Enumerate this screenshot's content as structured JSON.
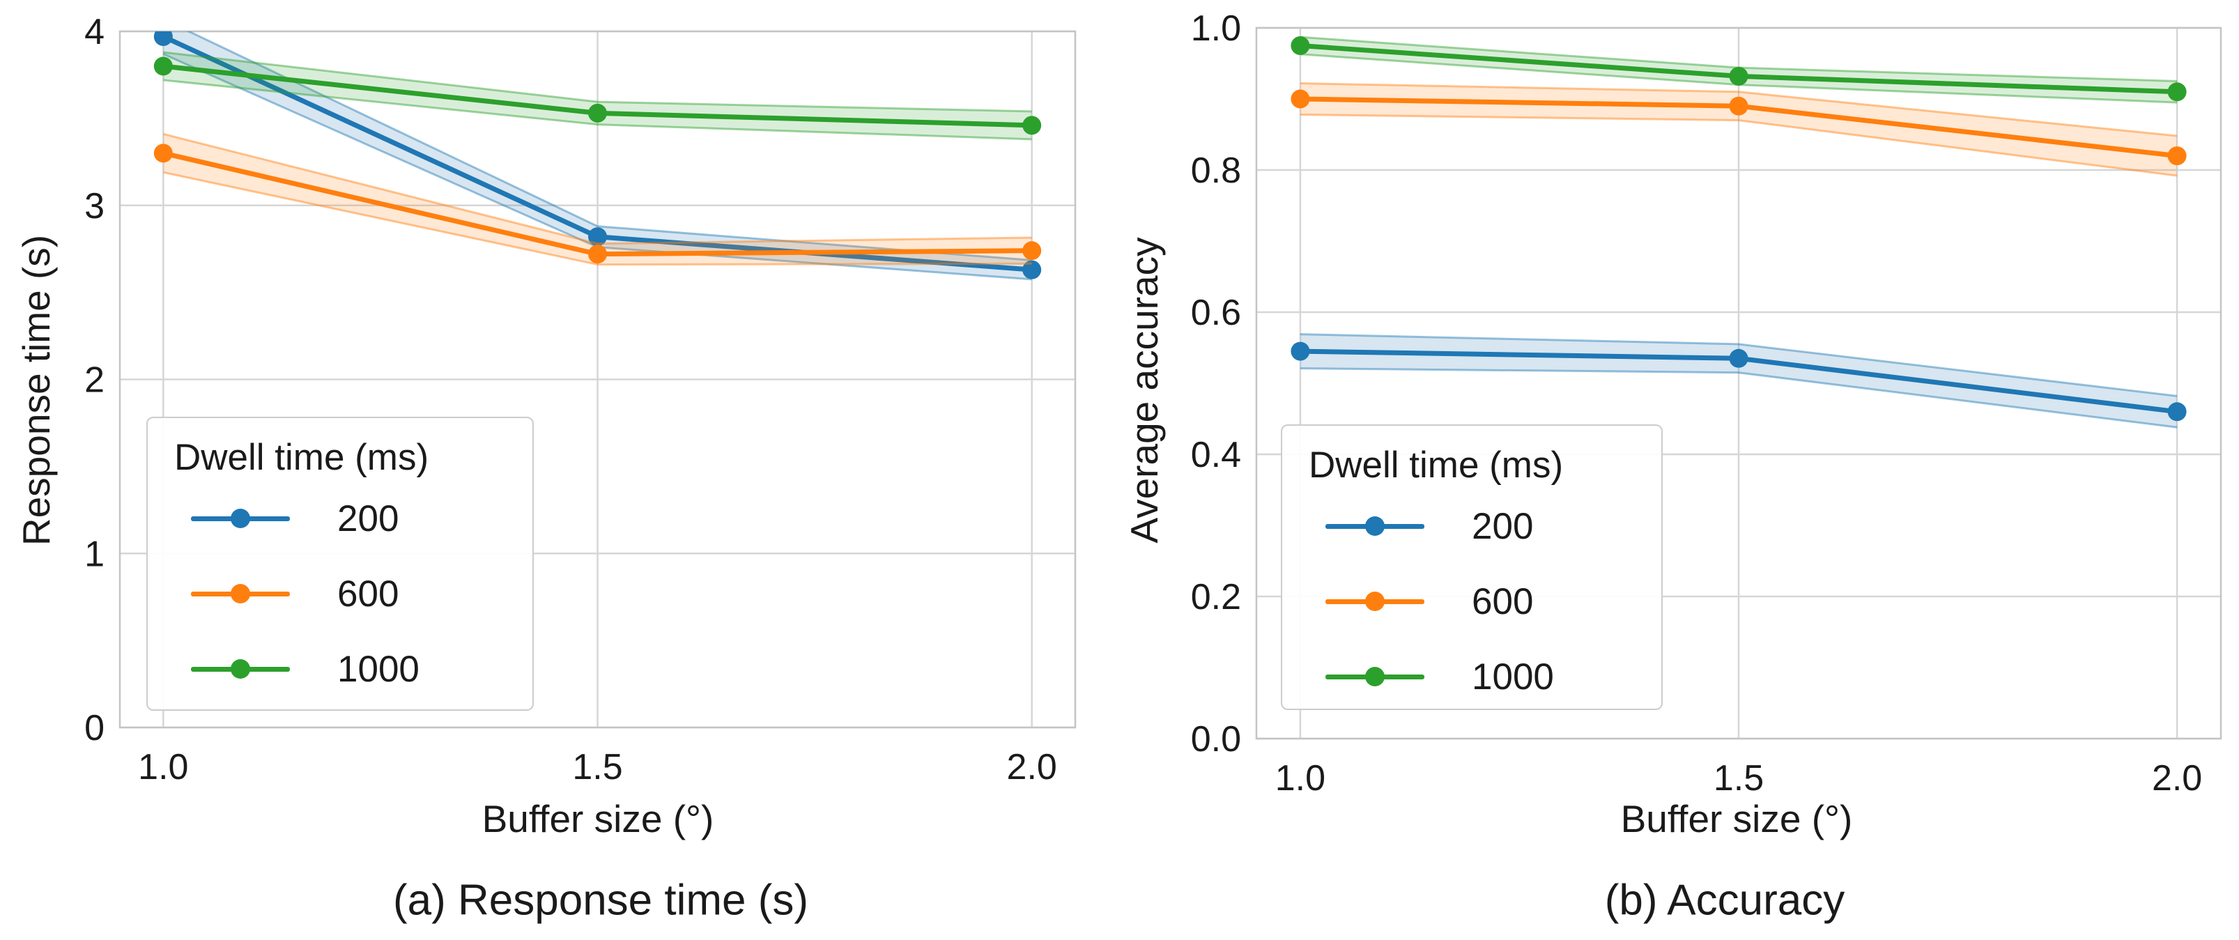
{
  "chart_data": [
    {
      "type": "line",
      "caption": "(a) Response time (s)",
      "xlabel": "Buffer size (°)",
      "ylabel": "Response time (s)",
      "x": [
        1.0,
        1.5,
        2.0
      ],
      "xtick_labels": [
        "1.0",
        "1.5",
        "2.0"
      ],
      "yticks": [
        0,
        1,
        2,
        3,
        4
      ],
      "ytick_labels": [
        "0",
        "1",
        "2",
        "3",
        "4"
      ],
      "xlim": [
        0.95,
        2.05
      ],
      "ylim": [
        0,
        4
      ],
      "grid": true,
      "legend": {
        "title": "Dwell time (ms)",
        "position": "lower left"
      },
      "series": [
        {
          "name": "200",
          "color": "#1f77b4",
          "values": [
            3.97,
            2.82,
            2.63
          ],
          "band": [
            0.1,
            0.06,
            0.055
          ]
        },
        {
          "name": "600",
          "color": "#ff7f0e",
          "values": [
            3.3,
            2.72,
            2.74
          ],
          "band": [
            0.11,
            0.06,
            0.075
          ]
        },
        {
          "name": "1000",
          "color": "#2ca02c",
          "values": [
            3.8,
            3.53,
            3.46
          ],
          "band": [
            0.08,
            0.065,
            0.08
          ]
        }
      ]
    },
    {
      "type": "line",
      "caption": "(b) Accuracy",
      "xlabel": "Buffer size (°)",
      "ylabel": "Average accuracy",
      "x": [
        1.0,
        1.5,
        2.0
      ],
      "xtick_labels": [
        "1.0",
        "1.5",
        "2.0"
      ],
      "yticks": [
        0,
        0.2,
        0.4,
        0.6,
        0.8,
        1.0
      ],
      "ytick_labels": [
        "0.0",
        "0.2",
        "0.4",
        "0.6",
        "0.8",
        "1.0"
      ],
      "xlim": [
        0.95,
        2.05
      ],
      "ylim": [
        0,
        1
      ],
      "grid": true,
      "legend": {
        "title": "Dwell time (ms)",
        "position": "lower left"
      },
      "series": [
        {
          "name": "200",
          "color": "#1f77b4",
          "values": [
            0.545,
            0.535,
            0.46
          ],
          "band": [
            0.024,
            0.02,
            0.022
          ]
        },
        {
          "name": "600",
          "color": "#ff7f0e",
          "values": [
            0.9,
            0.89,
            0.82
          ],
          "band": [
            0.022,
            0.02,
            0.028
          ]
        },
        {
          "name": "1000",
          "color": "#2ca02c",
          "values": [
            0.975,
            0.932,
            0.91
          ],
          "band": [
            0.012,
            0.012,
            0.015
          ]
        }
      ]
    }
  ],
  "style": {
    "grid_color": "#d6d6d6",
    "spine_color": "#c4c4c4",
    "text_color": "#1a1a1a",
    "background": "#ffffff"
  }
}
